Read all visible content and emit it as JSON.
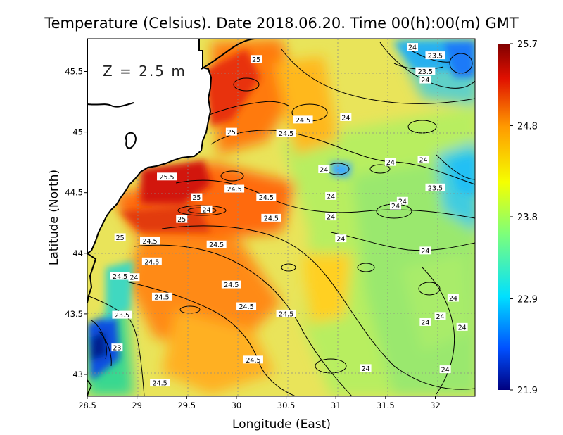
{
  "chart_data": {
    "type": "heatmap",
    "title": "Temperature (Celsius). Date 2018.06.20. Time 00(h):00(m)  GMT",
    "annotation": "Z = 2.5 m",
    "xlabel": "Longitude (East)",
    "ylabel": "Latitude (North)",
    "xlim": [
      28.5,
      32.4
    ],
    "ylim": [
      42.82,
      45.77
    ],
    "x_ticks": [
      28.5,
      29,
      29.5,
      30,
      30.5,
      31,
      31.5,
      32
    ],
    "x_tick_labels": [
      "28.5",
      "29",
      "29.5",
      "30",
      "30.5",
      "31",
      "31.5",
      "32"
    ],
    "y_ticks": [
      43,
      43.5,
      44,
      44.5,
      45,
      45.5
    ],
    "y_tick_labels": [
      "43",
      "43.5",
      "44",
      "44.5",
      "45",
      "45.5"
    ],
    "grid": true,
    "colorbar": {
      "min": 21.9,
      "max": 25.7,
      "ticks": [
        25.7,
        24.8,
        23.8,
        22.9,
        21.9
      ],
      "tick_labels": [
        "25.7",
        "24.8",
        "23.8",
        "22.9",
        "21.9"
      ],
      "colors": [
        "#00007f",
        "#0050ff",
        "#00e0ff",
        "#7dff7a",
        "#f5ff00",
        "#ff9a00",
        "#e01000",
        "#7f0000"
      ]
    },
    "contour_labels": [
      {
        "text": "24",
        "lon": 31.77,
        "lat": 45.7
      },
      {
        "text": "23.5",
        "lon": 32.0,
        "lat": 45.63
      },
      {
        "text": "25",
        "lon": 30.2,
        "lat": 45.6
      },
      {
        "text": "23.5",
        "lon": 31.9,
        "lat": 45.5
      },
      {
        "text": "24",
        "lon": 31.9,
        "lat": 45.43
      },
      {
        "text": "24.5",
        "lon": 30.67,
        "lat": 45.1
      },
      {
        "text": "24",
        "lon": 31.1,
        "lat": 45.12
      },
      {
        "text": "25",
        "lon": 29.95,
        "lat": 45.0
      },
      {
        "text": "24.5",
        "lon": 30.5,
        "lat": 44.99
      },
      {
        "text": "24",
        "lon": 31.55,
        "lat": 44.75
      },
      {
        "text": "24",
        "lon": 31.88,
        "lat": 44.77
      },
      {
        "text": "24",
        "lon": 30.88,
        "lat": 44.69
      },
      {
        "text": "25.5",
        "lon": 29.3,
        "lat": 44.63
      },
      {
        "text": "24.5",
        "lon": 29.98,
        "lat": 44.53
      },
      {
        "text": "23.5",
        "lon": 32.0,
        "lat": 44.54
      },
      {
        "text": "24",
        "lon": 30.95,
        "lat": 44.47
      },
      {
        "text": "25",
        "lon": 29.6,
        "lat": 44.46
      },
      {
        "text": "24.5",
        "lon": 30.3,
        "lat": 44.46
      },
      {
        "text": "24",
        "lon": 31.67,
        "lat": 44.43
      },
      {
        "text": "24",
        "lon": 31.6,
        "lat": 44.39
      },
      {
        "text": "24",
        "lon": 29.7,
        "lat": 44.36
      },
      {
        "text": "24",
        "lon": 30.95,
        "lat": 44.3
      },
      {
        "text": "24.5",
        "lon": 30.35,
        "lat": 44.29
      },
      {
        "text": "25",
        "lon": 29.45,
        "lat": 44.28
      },
      {
        "text": "25",
        "lon": 28.83,
        "lat": 44.13
      },
      {
        "text": "24",
        "lon": 31.05,
        "lat": 44.12
      },
      {
        "text": "24.5",
        "lon": 29.13,
        "lat": 44.1
      },
      {
        "text": "24.5",
        "lon": 29.8,
        "lat": 44.07
      },
      {
        "text": "24",
        "lon": 31.9,
        "lat": 44.02
      },
      {
        "text": "24.5",
        "lon": 29.15,
        "lat": 43.93
      },
      {
        "text": "24.5",
        "lon": 28.83,
        "lat": 43.81
      },
      {
        "text": "24",
        "lon": 28.97,
        "lat": 43.8
      },
      {
        "text": "24.5",
        "lon": 29.95,
        "lat": 43.74
      },
      {
        "text": "24.5",
        "lon": 29.25,
        "lat": 43.64
      },
      {
        "text": "24",
        "lon": 32.18,
        "lat": 43.63
      },
      {
        "text": "24.5",
        "lon": 30.1,
        "lat": 43.56
      },
      {
        "text": "24.5",
        "lon": 30.5,
        "lat": 43.5
      },
      {
        "text": "23.5",
        "lon": 28.85,
        "lat": 43.49
      },
      {
        "text": "24",
        "lon": 31.9,
        "lat": 43.43
      },
      {
        "text": "24",
        "lon": 32.05,
        "lat": 43.48
      },
      {
        "text": "24",
        "lon": 32.27,
        "lat": 43.39
      },
      {
        "text": "23",
        "lon": 28.8,
        "lat": 43.22
      },
      {
        "text": "24.5",
        "lon": 30.17,
        "lat": 43.12
      },
      {
        "text": "24",
        "lon": 31.3,
        "lat": 43.05
      },
      {
        "text": "24",
        "lon": 32.1,
        "lat": 43.04
      },
      {
        "text": "24.5",
        "lon": 29.23,
        "lat": 42.93
      }
    ]
  }
}
